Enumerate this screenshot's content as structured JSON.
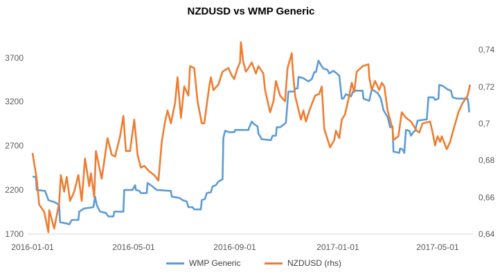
{
  "chart_data": {
    "type": "line",
    "title": "NZDUSD vs WMP Generic",
    "xlabel": "",
    "ylabel": "",
    "x_ticks": [
      "2016-01-01",
      "2016-05-01",
      "2016-09-01",
      "2017-01-01",
      "2017-05-01"
    ],
    "y_left": {
      "ylim": [
        1700,
        4000
      ],
      "ticks": [
        "1700",
        "2200",
        "2700",
        "3200",
        "3700"
      ]
    },
    "y_right": {
      "ylim": [
        0.64,
        0.75
      ],
      "ticks": [
        "0,64",
        "0,66",
        "0,68",
        "0,7",
        "0,72",
        "0,74"
      ]
    },
    "grid": false,
    "legend_position": "bottom",
    "series": [
      {
        "name": "WMP Generic",
        "axis": "left",
        "color": "#5B9BD5",
        "points": [
          [
            "2016-01-01",
            2350
          ],
          [
            "2016-01-05",
            2350
          ],
          [
            "2016-01-06",
            2200
          ],
          [
            "2016-01-16",
            2190
          ],
          [
            "2016-01-20",
            2085
          ],
          [
            "2016-01-28",
            2060
          ],
          [
            "2016-02-02",
            2030
          ],
          [
            "2016-02-03",
            1835
          ],
          [
            "2016-02-11",
            1820
          ],
          [
            "2016-02-14",
            1810
          ],
          [
            "2016-02-17",
            1860
          ],
          [
            "2016-02-25",
            1860
          ],
          [
            "2016-02-26",
            1955
          ],
          [
            "2016-03-03",
            1990
          ],
          [
            "2016-03-14",
            2005
          ],
          [
            "2016-03-16",
            2125
          ],
          [
            "2016-03-18",
            2030
          ],
          [
            "2016-03-22",
            1955
          ],
          [
            "2016-03-29",
            1940
          ],
          [
            "2016-04-01",
            1900
          ],
          [
            "2016-04-07",
            1900
          ],
          [
            "2016-04-08",
            1955
          ],
          [
            "2016-04-19",
            1955
          ],
          [
            "2016-04-20",
            2200
          ],
          [
            "2016-04-30",
            2200
          ],
          [
            "2016-05-03",
            2255
          ],
          [
            "2016-05-04",
            2200
          ],
          [
            "2016-05-08",
            2190
          ],
          [
            "2016-05-10",
            2165
          ],
          [
            "2016-05-17",
            2165
          ],
          [
            "2016-05-18",
            2280
          ],
          [
            "2016-05-24",
            2240
          ],
          [
            "2016-05-29",
            2200
          ],
          [
            "2016-06-15",
            2190
          ],
          [
            "2016-06-16",
            2125
          ],
          [
            "2016-06-25",
            2110
          ],
          [
            "2016-06-29",
            2085
          ],
          [
            "2016-07-04",
            2070
          ],
          [
            "2016-07-06",
            2005
          ],
          [
            "2016-07-11",
            2005
          ],
          [
            "2016-07-13",
            1980
          ],
          [
            "2016-07-21",
            1980
          ],
          [
            "2016-07-22",
            2085
          ],
          [
            "2016-07-26",
            2100
          ],
          [
            "2016-07-28",
            2165
          ],
          [
            "2016-08-02",
            2175
          ],
          [
            "2016-08-04",
            2240
          ],
          [
            "2016-08-08",
            2255
          ],
          [
            "2016-08-11",
            2295
          ],
          [
            "2016-08-16",
            2320
          ],
          [
            "2016-08-17",
            2790
          ],
          [
            "2016-08-19",
            2870
          ],
          [
            "2016-08-24",
            2855
          ],
          [
            "2016-08-30",
            2855
          ],
          [
            "2016-08-31",
            2880
          ],
          [
            "2016-09-16",
            2880
          ],
          [
            "2016-09-17",
            2910
          ],
          [
            "2016-09-20",
            2975
          ],
          [
            "2016-09-23",
            2945
          ],
          [
            "2016-09-27",
            2920
          ],
          [
            "2016-09-28",
            2840
          ],
          [
            "2016-10-02",
            2775
          ],
          [
            "2016-10-13",
            2765
          ],
          [
            "2016-10-15",
            2815
          ],
          [
            "2016-10-19",
            2815
          ],
          [
            "2016-10-20",
            2910
          ],
          [
            "2016-10-24",
            2910
          ],
          [
            "2016-10-31",
            2960
          ],
          [
            "2016-11-03",
            3315
          ],
          [
            "2016-11-10",
            3315
          ],
          [
            "2016-11-11",
            3350
          ],
          [
            "2016-11-14",
            3350
          ],
          [
            "2016-11-15",
            3480
          ],
          [
            "2016-11-20",
            3470
          ],
          [
            "2016-11-27",
            3430
          ],
          [
            "2016-12-01",
            3455
          ],
          [
            "2016-12-04",
            3535
          ],
          [
            "2016-12-06",
            3535
          ],
          [
            "2016-12-09",
            3665
          ],
          [
            "2016-12-12",
            3615
          ],
          [
            "2016-12-15",
            3575
          ],
          [
            "2016-12-20",
            3560
          ],
          [
            "2016-12-22",
            3520
          ],
          [
            "2016-12-27",
            3550
          ],
          [
            "2016-12-31",
            3520
          ],
          [
            "2017-01-03",
            3495
          ],
          [
            "2017-01-06",
            3235
          ],
          [
            "2017-01-08",
            3235
          ],
          [
            "2017-01-11",
            3285
          ],
          [
            "2017-01-17",
            3260
          ],
          [
            "2017-01-20",
            3325
          ],
          [
            "2017-01-31",
            3325
          ],
          [
            "2017-02-01",
            3235
          ],
          [
            "2017-02-08",
            3210
          ],
          [
            "2017-02-11",
            3340
          ],
          [
            "2017-02-18",
            3300
          ],
          [
            "2017-02-22",
            3235
          ],
          [
            "2017-02-25",
            3105
          ],
          [
            "2017-03-02",
            3025
          ],
          [
            "2017-03-05",
            2910
          ],
          [
            "2017-03-08",
            2920
          ],
          [
            "2017-03-09",
            2635
          ],
          [
            "2017-03-16",
            2620
          ],
          [
            "2017-03-17",
            2670
          ],
          [
            "2017-03-20",
            2660
          ],
          [
            "2017-03-22",
            2620
          ],
          [
            "2017-03-24",
            2880
          ],
          [
            "2017-03-28",
            2870
          ],
          [
            "2017-03-30",
            2815
          ],
          [
            "2017-04-02",
            2855
          ],
          [
            "2017-04-04",
            2870
          ],
          [
            "2017-04-07",
            2985
          ],
          [
            "2017-04-18",
            3000
          ],
          [
            "2017-04-20",
            3250
          ],
          [
            "2017-04-26",
            3250
          ],
          [
            "2017-04-28",
            3220
          ],
          [
            "2017-05-02",
            3235
          ],
          [
            "2017-05-03",
            3390
          ],
          [
            "2017-05-07",
            3380
          ],
          [
            "2017-05-13",
            3340
          ],
          [
            "2017-05-17",
            3325
          ],
          [
            "2017-05-19",
            3250
          ],
          [
            "2017-05-24",
            3235
          ],
          [
            "2017-06-06",
            3235
          ],
          [
            "2017-06-07",
            3180
          ],
          [
            "2017-06-08",
            3080
          ]
        ]
      },
      {
        "name": "NZDUSD (rhs)",
        "axis": "right",
        "color": "#ED7D31",
        "points": [
          [
            "2016-01-01",
            0.684
          ],
          [
            "2016-01-06",
            0.67
          ],
          [
            "2016-01-09",
            0.656
          ],
          [
            "2016-01-15",
            0.652
          ],
          [
            "2016-01-20",
            0.641
          ],
          [
            "2016-01-21",
            0.653
          ],
          [
            "2016-01-27",
            0.643
          ],
          [
            "2016-02-02",
            0.657
          ],
          [
            "2016-02-04",
            0.672
          ],
          [
            "2016-02-08",
            0.663
          ],
          [
            "2016-02-11",
            0.671
          ],
          [
            "2016-02-15",
            0.658
          ],
          [
            "2016-02-20",
            0.663
          ],
          [
            "2016-02-25",
            0.672
          ],
          [
            "2016-02-29",
            0.658
          ],
          [
            "2016-03-04",
            0.681
          ],
          [
            "2016-03-09",
            0.666
          ],
          [
            "2016-03-11",
            0.673
          ],
          [
            "2016-03-15",
            0.66
          ],
          [
            "2016-03-17",
            0.685
          ],
          [
            "2016-03-24",
            0.67
          ],
          [
            "2016-03-31",
            0.692
          ],
          [
            "2016-04-05",
            0.683
          ],
          [
            "2016-04-09",
            0.682
          ],
          [
            "2016-04-15",
            0.693
          ],
          [
            "2016-04-19",
            0.704
          ],
          [
            "2016-04-22",
            0.685
          ],
          [
            "2016-04-27",
            0.685
          ],
          [
            "2016-05-02",
            0.702
          ],
          [
            "2016-05-06",
            0.683
          ],
          [
            "2016-05-10",
            0.676
          ],
          [
            "2016-05-14",
            0.677
          ],
          [
            "2016-05-20",
            0.674
          ],
          [
            "2016-05-26",
            0.672
          ],
          [
            "2016-05-31",
            0.669
          ],
          [
            "2016-06-04",
            0.69
          ],
          [
            "2016-06-08",
            0.701
          ],
          [
            "2016-06-11",
            0.707
          ],
          [
            "2016-06-15",
            0.7
          ],
          [
            "2016-06-20",
            0.711
          ],
          [
            "2016-06-23",
            0.725
          ],
          [
            "2016-06-27",
            0.703
          ],
          [
            "2016-07-01",
            0.72
          ],
          [
            "2016-07-06",
            0.715
          ],
          [
            "2016-07-08",
            0.731
          ],
          [
            "2016-07-13",
            0.73
          ],
          [
            "2016-07-17",
            0.712
          ],
          [
            "2016-07-22",
            0.7
          ],
          [
            "2016-07-25",
            0.7
          ],
          [
            "2016-07-31",
            0.72
          ],
          [
            "2016-08-02",
            0.725
          ],
          [
            "2016-08-05",
            0.718
          ],
          [
            "2016-08-11",
            0.721
          ],
          [
            "2016-08-16",
            0.728
          ],
          [
            "2016-08-23",
            0.73
          ],
          [
            "2016-08-27",
            0.726
          ],
          [
            "2016-08-30",
            0.724
          ],
          [
            "2016-09-03",
            0.73
          ],
          [
            "2016-09-06",
            0.733
          ],
          [
            "2016-09-07",
            0.744
          ],
          [
            "2016-09-10",
            0.733
          ],
          [
            "2016-09-13",
            0.728
          ],
          [
            "2016-09-16",
            0.73
          ],
          [
            "2016-09-20",
            0.733
          ],
          [
            "2016-09-25",
            0.727
          ],
          [
            "2016-09-28",
            0.731
          ],
          [
            "2016-10-04",
            0.727
          ],
          [
            "2016-10-06",
            0.718
          ],
          [
            "2016-10-12",
            0.706
          ],
          [
            "2016-10-16",
            0.712
          ],
          [
            "2016-10-19",
            0.723
          ],
          [
            "2016-10-24",
            0.715
          ],
          [
            "2016-10-30",
            0.712
          ],
          [
            "2016-11-02",
            0.73
          ],
          [
            "2016-11-07",
            0.738
          ],
          [
            "2016-11-08",
            0.73
          ],
          [
            "2016-11-11",
            0.715
          ],
          [
            "2016-11-18",
            0.702
          ],
          [
            "2016-11-21",
            0.707
          ],
          [
            "2016-11-24",
            0.701
          ],
          [
            "2016-11-29",
            0.708
          ],
          [
            "2016-12-05",
            0.715
          ],
          [
            "2016-12-10",
            0.716
          ],
          [
            "2016-12-13",
            0.72
          ],
          [
            "2016-12-16",
            0.697
          ],
          [
            "2016-12-23",
            0.687
          ],
          [
            "2016-12-28",
            0.691
          ],
          [
            "2016-12-30",
            0.696
          ],
          [
            "2017-01-03",
            0.692
          ],
          [
            "2017-01-06",
            0.702
          ],
          [
            "2017-01-10",
            0.705
          ],
          [
            "2017-01-15",
            0.715
          ],
          [
            "2017-01-18",
            0.722
          ],
          [
            "2017-01-21",
            0.717
          ],
          [
            "2017-01-24",
            0.728
          ],
          [
            "2017-01-31",
            0.731
          ],
          [
            "2017-02-07",
            0.732
          ],
          [
            "2017-02-08",
            0.725
          ],
          [
            "2017-02-11",
            0.718
          ],
          [
            "2017-02-15",
            0.723
          ],
          [
            "2017-02-20",
            0.718
          ],
          [
            "2017-02-23",
            0.722
          ],
          [
            "2017-02-26",
            0.72
          ],
          [
            "2017-03-02",
            0.707
          ],
          [
            "2017-03-08",
            0.697
          ],
          [
            "2017-03-09",
            0.691
          ],
          [
            "2017-03-15",
            0.693
          ],
          [
            "2017-03-19",
            0.706
          ],
          [
            "2017-03-24",
            0.703
          ],
          [
            "2017-03-30",
            0.701
          ],
          [
            "2017-04-06",
            0.696
          ],
          [
            "2017-04-09",
            0.695
          ],
          [
            "2017-04-13",
            0.7
          ],
          [
            "2017-04-22",
            0.701
          ],
          [
            "2017-04-25",
            0.695
          ],
          [
            "2017-04-28",
            0.688
          ],
          [
            "2017-05-01",
            0.693
          ],
          [
            "2017-05-04",
            0.69
          ],
          [
            "2017-05-06",
            0.693
          ],
          [
            "2017-05-12",
            0.686
          ],
          [
            "2017-05-16",
            0.69
          ],
          [
            "2017-05-19",
            0.695
          ],
          [
            "2017-05-26",
            0.706
          ],
          [
            "2017-05-31",
            0.711
          ],
          [
            "2017-06-06",
            0.715
          ],
          [
            "2017-06-09",
            0.721
          ]
        ]
      }
    ]
  }
}
